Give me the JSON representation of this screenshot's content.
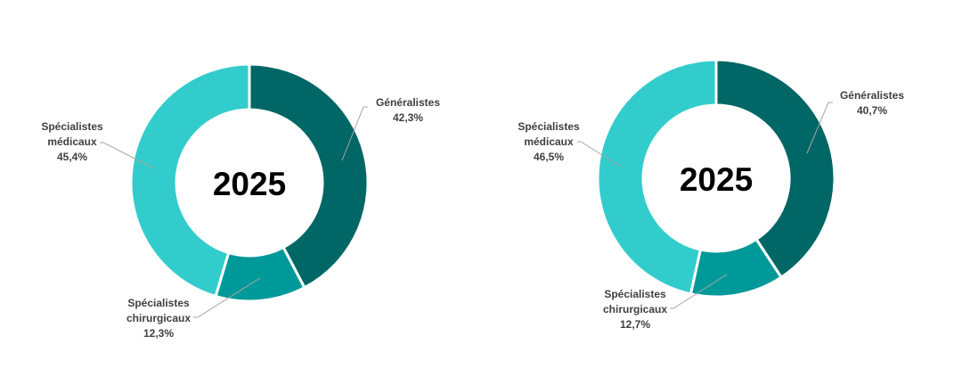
{
  "chart_data": [
    {
      "type": "pie",
      "variant": "donut",
      "center_label": "2025",
      "slices": [
        {
          "key": "generalistes",
          "label": "Généralistes",
          "value_label": "42,3%",
          "value": 42.3,
          "color": "#006666"
        },
        {
          "key": "chirurgicaux",
          "label_lines": [
            "Spécialistes",
            "chirurgicaux"
          ],
          "value_label": "12,3%",
          "value": 12.3,
          "color": "#009999"
        },
        {
          "key": "medicaux",
          "label_lines": [
            "Spécialistes",
            "médicaux"
          ],
          "value_label": "45,4%",
          "value": 45.4,
          "color": "#33CCCC"
        }
      ]
    },
    {
      "type": "pie",
      "variant": "donut",
      "center_label": "2025",
      "slices": [
        {
          "key": "generalistes",
          "label": "Généralistes",
          "value_label": "40,7%",
          "value": 40.7,
          "color": "#006666"
        },
        {
          "key": "chirurgicaux",
          "label_lines": [
            "Spécialistes",
            "chirurgicaux"
          ],
          "value_label": "12,7%",
          "value": 12.7,
          "color": "#009999"
        },
        {
          "key": "medicaux",
          "label_lines": [
            "Spécialistes",
            "médicaux"
          ],
          "value_label": "46,5%",
          "value": 46.5,
          "color": "#33CCCC"
        }
      ]
    }
  ]
}
